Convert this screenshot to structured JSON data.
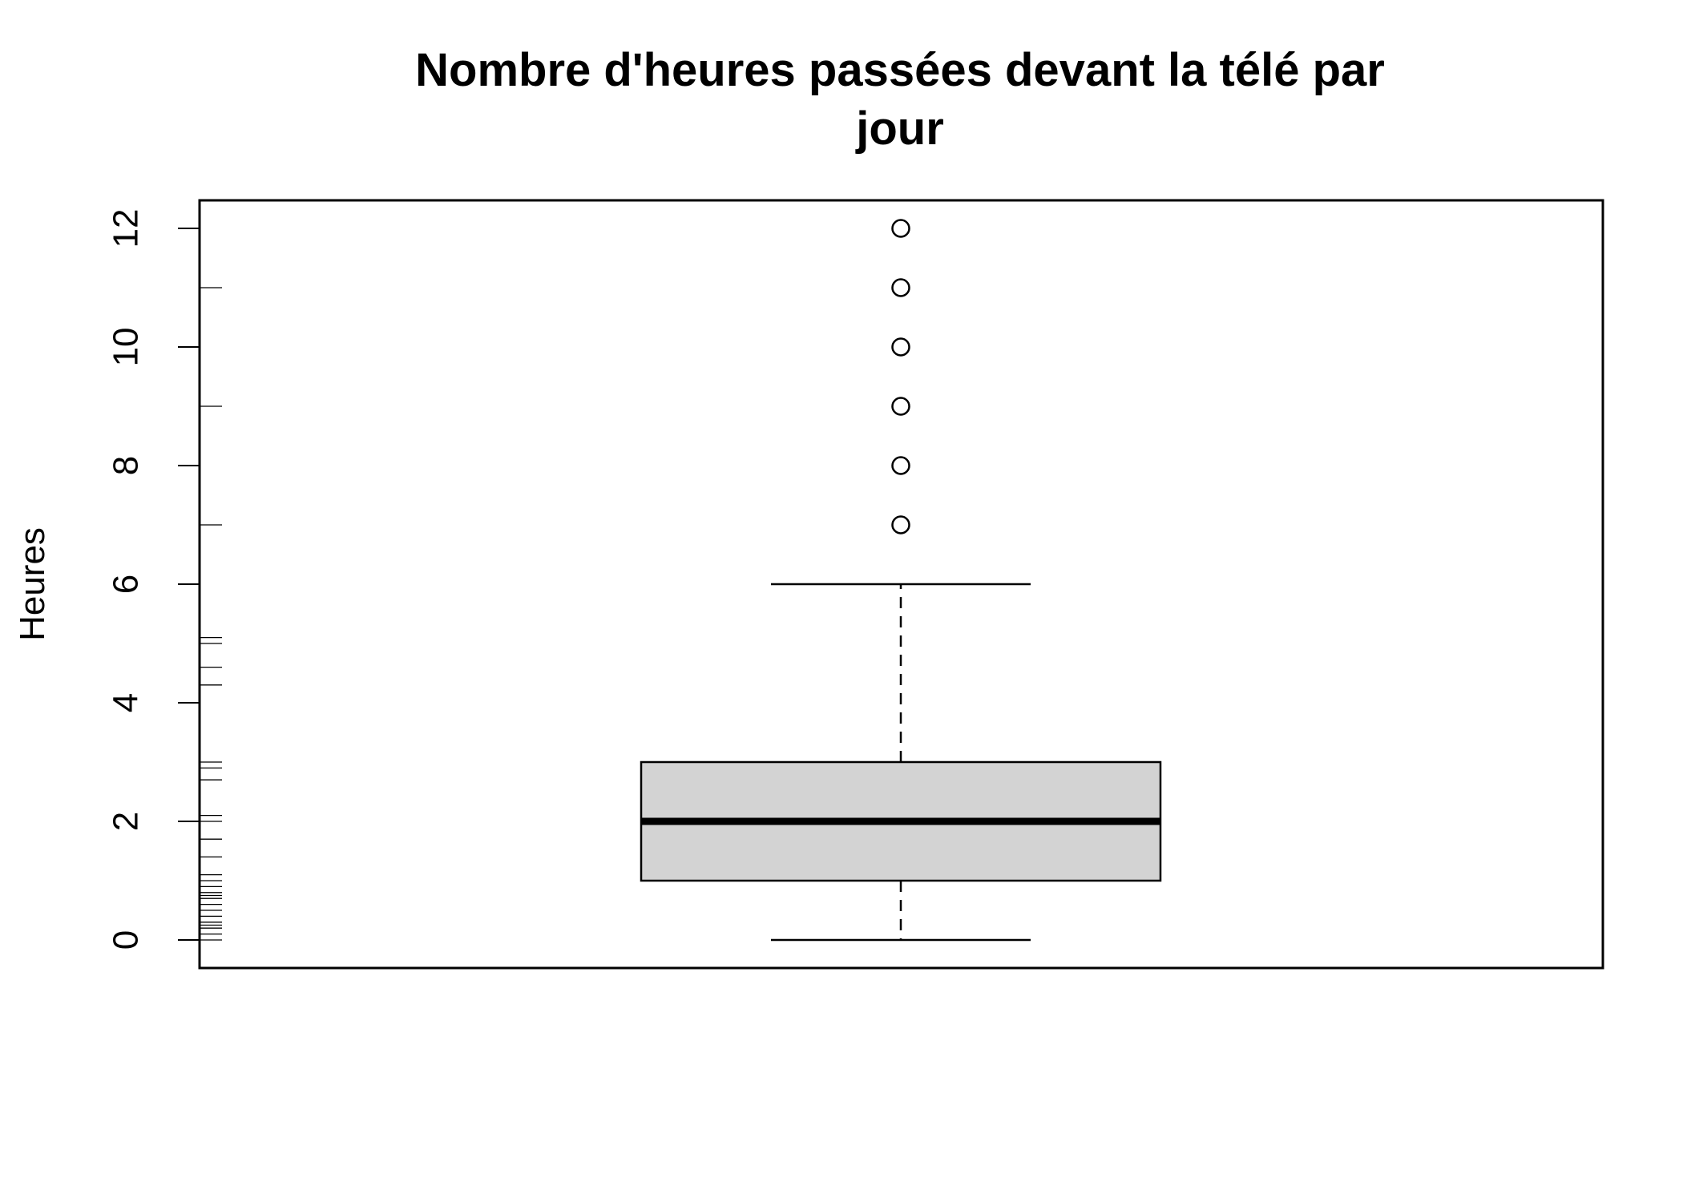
{
  "chart_data": {
    "type": "boxplot",
    "title": "Nombre d'heures passées devant la télé par jour",
    "title_lines": [
      "Nombre d'heures passées devant la télé par",
      "jour"
    ],
    "xlabel": "",
    "ylabel": "Heures",
    "ylim": [
      -0.5,
      12.5
    ],
    "yticks": [
      0,
      2,
      4,
      6,
      8,
      10,
      12
    ],
    "ytick_labels": [
      "0",
      "2",
      "4",
      "6",
      "8",
      "10",
      "12"
    ],
    "grid": false,
    "legend": "none",
    "box": {
      "whisker_low": 0,
      "q1": 1,
      "median": 2,
      "q3": 3,
      "whisker_high": 6,
      "outliers": [
        7,
        8,
        9,
        10,
        11,
        12
      ]
    },
    "rug": [
      0,
      0.1,
      0.2,
      0.25,
      0.3,
      0.4,
      0.5,
      0.6,
      0.7,
      0.75,
      0.8,
      0.9,
      1,
      1.1,
      1.4,
      1.7,
      2,
      2.1,
      2.7,
      2.9,
      3,
      4.3,
      4.6,
      5,
      5.1,
      7,
      9,
      11
    ],
    "colors": {
      "box_fill": "#d3d3d3",
      "stroke": "#000000"
    }
  }
}
